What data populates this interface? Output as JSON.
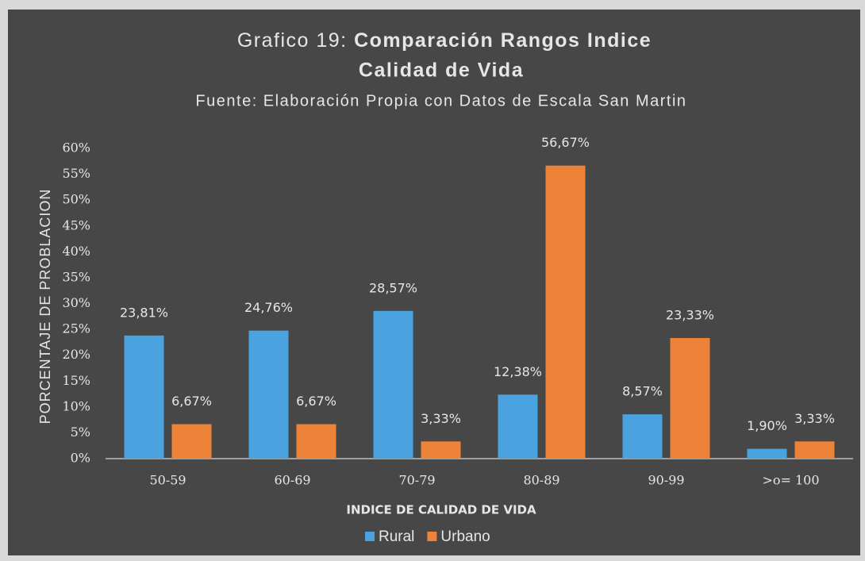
{
  "chart_data": {
    "type": "bar",
    "title": [
      "Grafico 19:",
      "Comparación Rangos Indice",
      "Calidad de Vida"
    ],
    "subtitle": "Fuente: Elaboración Propia con Datos de Escala San Martin",
    "x_label": "INDICE DE CALIDAD DE VIDA",
    "y_label": "PORCENTAJE DE PROBLACION",
    "categories": [
      "50-59",
      "60-69",
      "70-79",
      "80-89",
      "90-99",
      ">o= 100"
    ],
    "series": [
      {
        "name": "Rural",
        "color": "#4aa3df",
        "values": [
          23.81,
          24.76,
          28.57,
          12.38,
          8.57,
          1.9
        ],
        "value_labels": [
          "23,81%",
          "24,76%",
          "28,57%",
          "12,38%",
          "8,57%",
          "1,90%"
        ]
      },
      {
        "name": "Urbano",
        "color": "#ec8339",
        "values": [
          6.67,
          6.67,
          3.33,
          56.67,
          23.33,
          3.33
        ],
        "value_labels": [
          "6,67%",
          "6,67%",
          "3,33%",
          "56,67%",
          "23,33%",
          "3,33%"
        ]
      }
    ],
    "ylim": [
      0,
      60
    ],
    "yticks": [
      {
        "value": 0,
        "label": "0%"
      },
      {
        "value": 5,
        "label": "5%"
      },
      {
        "value": 10,
        "label": "10%"
      },
      {
        "value": 15,
        "label": "15%"
      },
      {
        "value": 20,
        "label": "20%"
      },
      {
        "value": 25,
        "label": "25%"
      },
      {
        "value": 30,
        "label": "30%"
      },
      {
        "value": 35,
        "label": "35%"
      },
      {
        "value": 40,
        "label": "40%"
      },
      {
        "value": 45,
        "label": "45%"
      },
      {
        "value": 50,
        "label": "50%"
      },
      {
        "value": 55,
        "label": "55%"
      },
      {
        "value": 60,
        "label": "60%"
      }
    ],
    "grid": false,
    "legend": "bottom"
  }
}
